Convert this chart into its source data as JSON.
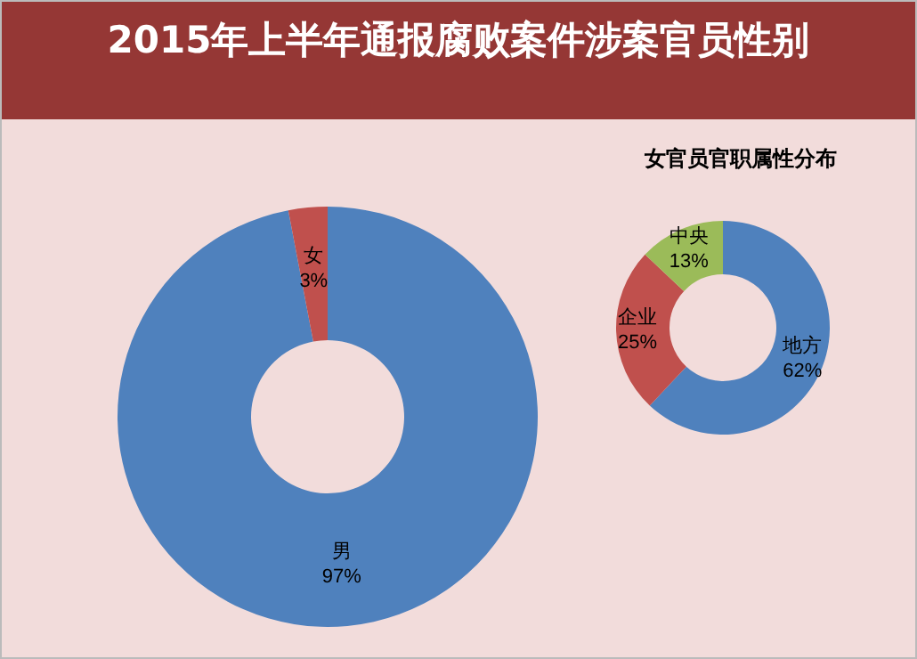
{
  "chart_data": [
    {
      "type": "donut",
      "title": "2015年上半年通报腐败案件涉案官员性别",
      "categories": [
        "男",
        "女"
      ],
      "values": [
        97,
        3
      ],
      "value_labels": [
        "97%",
        "3%"
      ],
      "colors": [
        "#4f81bd",
        "#c0504d"
      ],
      "legend": false
    },
    {
      "type": "donut",
      "title": "女官员官职属性分布",
      "categories": [
        "地方",
        "企业",
        "中央"
      ],
      "values": [
        62,
        25,
        13
      ],
      "value_labels": [
        "62%",
        "25%",
        "13%"
      ],
      "colors": [
        "#4f81bd",
        "#c0504d",
        "#9bbb59"
      ],
      "legend": false
    }
  ]
}
